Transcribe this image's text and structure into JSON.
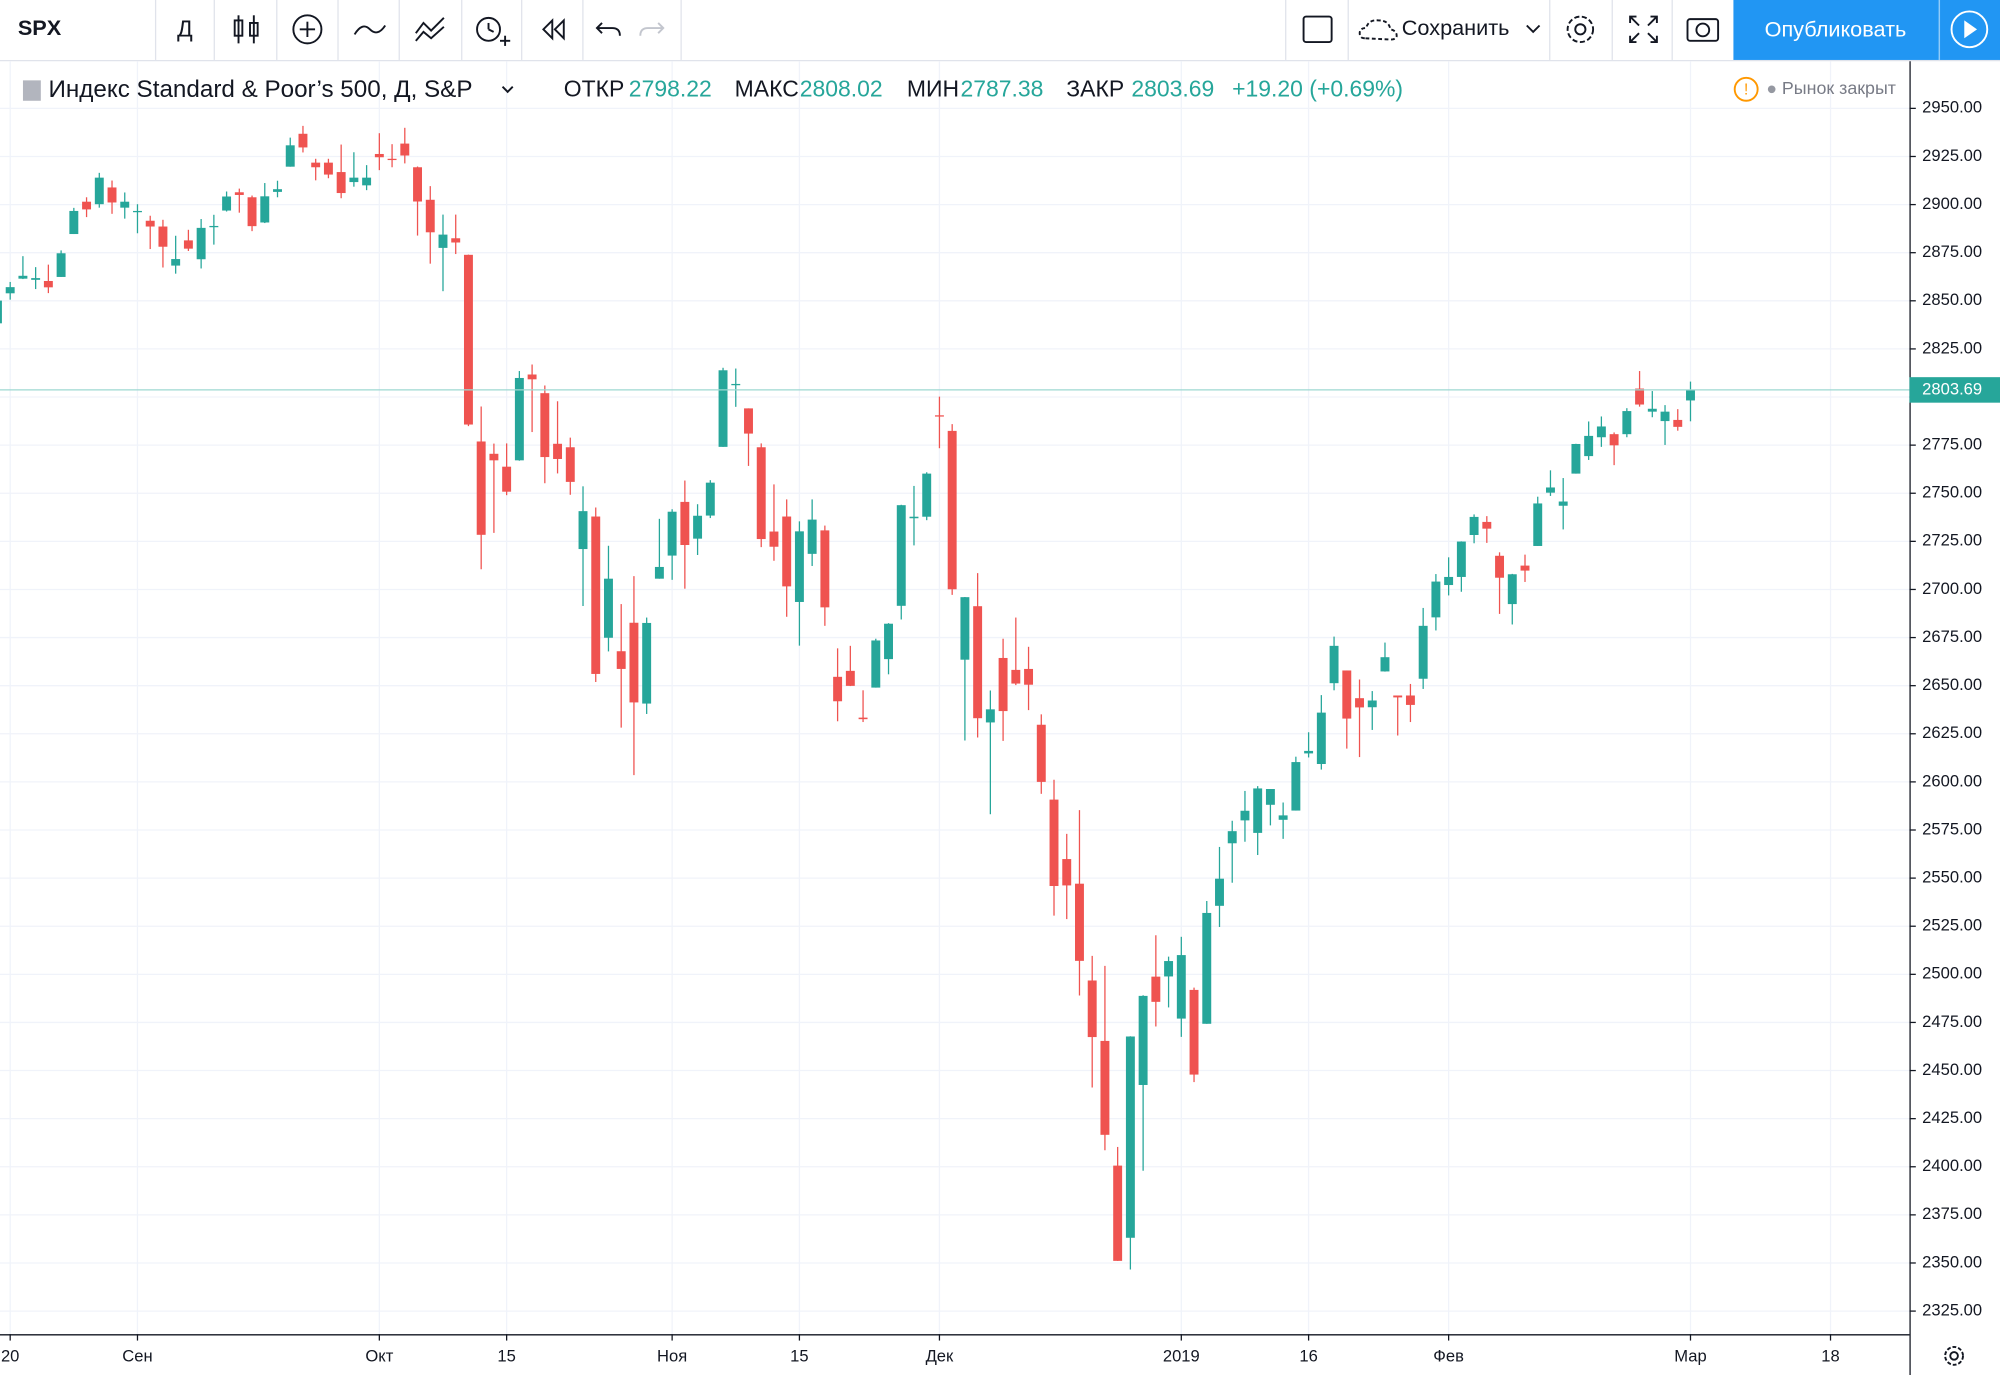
{
  "toolbar": {
    "symbol": "SPX",
    "interval": "Д",
    "save": "Сохранить",
    "publish": "Опубликовать"
  },
  "chart_data": {
    "type": "candlestick",
    "title": "Индекс Standard & Poor’s 500, Д, S&P",
    "legend": {
      "open": "ОТКР",
      "high": "МАКС",
      "low": "МИН",
      "close": "ЗАКР",
      "change": "+19.20 (+0.69%)"
    },
    "status": "Рынок закрыт",
    "open": [
      2838.3,
      2853.9,
      2861.5,
      2860.9,
      2860.3,
      2862.4,
      2884.7,
      2901.5,
      2900.2,
      2908.9,
      2898.4,
      2896.5,
      2891.6,
      2888.6,
      2868.3,
      2881.4,
      2871.6,
      2888.3,
      2896.9,
      2906.4,
      2903.8,
      2890.7,
      2906.6,
      2919.7,
      2936.8,
      2921.8,
      2921.8,
      2916.9,
      2911.7,
      2910.0,
      2926.3,
      2923.8,
      2931.7,
      2919.4,
      2902.5,
      2877.5,
      2882.5,
      2873.9,
      2776.9,
      2770.5,
      2763.8,
      2767.1,
      2811.7,
      2802.0,
      2775.7,
      2773.9,
      2721.0,
      2737.9,
      2674.9,
      2667.9,
      2682.7,
      2640.7,
      2705.6,
      2717.6,
      2745.5,
      2726.4,
      2738.4,
      2774.1,
      2806.4,
      2794.1,
      2773.9,
      2730.1,
      2737.9,
      2693.5,
      2718.5,
      2730.7,
      2654.6,
      2657.7,
      2633.4,
      2649.0,
      2663.8,
      2691.5,
      2737.0,
      2737.8,
      2790.5,
      2782.4,
      2663.5,
      2691.3,
      2630.9,
      2664.4,
      2658.2,
      2658.7,
      2629.7,
      2590.8,
      2559.9,
      2547.1,
      2496.8,
      2465.4,
      2400.6,
      2363.1,
      2442.5,
      2498.8,
      2498.9,
      2477.0,
      2491.9,
      2474.3,
      2535.6,
      2568.1,
      2580.0,
      2573.5,
      2588.1,
      2580.3,
      2585.1,
      2614.8,
      2609.3,
      2651.3,
      2657.9,
      2643.5,
      2638.8,
      2657.4,
      2644.9,
      2644.9,
      2653.6,
      2685.5,
      2702.3,
      2706.5,
      2728.3,
      2735.1,
      2717.5,
      2692.4,
      2712.4,
      2722.6,
      2750.3,
      2743.5,
      2760.2,
      2769.3,
      2779.1,
      2780.7,
      2780.7,
      2804.4,
      2792.4,
      2787.5,
      2788.1,
      2798.22
    ],
    "high": [
      2855.6,
      2859.8,
      2873.2,
      2867.5,
      2868.8,
      2876.2,
      2898.3,
      2903.8,
      2916.5,
      2912.5,
      2906.3,
      2900.2,
      2894.2,
      2892.1,
      2883.8,
      2886.9,
      2892.5,
      2894.7,
      2906.8,
      2908.3,
      2904.7,
      2911.2,
      2912.4,
      2934.8,
      2940.9,
      2923.8,
      2923.8,
      2931.2,
      2927.2,
      2920.5,
      2937.1,
      2931.4,
      2939.9,
      2919.8,
      2909.6,
      2894.8,
      2894.8,
      2874.0,
      2795.1,
      2775.8,
      2775.9,
      2813.5,
      2816.9,
      2806.0,
      2797.8,
      2778.9,
      2753.6,
      2742.6,
      2722.7,
      2692.4,
      2706.9,
      2685.4,
      2736.7,
      2741.7,
      2756.6,
      2744.3,
      2756.8,
      2815.2,
      2814.8,
      2794.1,
      2775.9,
      2754.6,
      2746.8,
      2735.4,
      2746.8,
      2733.2,
      2669.4,
      2670.7,
      2647.6,
      2674.4,
      2682.5,
      2744.0,
      2753.8,
      2760.9,
      2800.2,
      2785.9,
      2696.1,
      2708.5,
      2647.5,
      2674.4,
      2685.4,
      2670.2,
      2635.1,
      2601.1,
      2573.0,
      2585.3,
      2509.6,
      2504.4,
      2410.3,
      2467.8,
      2489.1,
      2520.3,
      2509.2,
      2519.5,
      2493.1,
      2538.1,
      2566.2,
      2579.8,
      2595.3,
      2597.8,
      2596.3,
      2589.3,
      2613.1,
      2625.8,
      2645.1,
      2675.5,
      2657.9,
      2653.2,
      2647.2,
      2672.4,
      2644.9,
      2650.9,
      2690.4,
      2708.0,
      2716.7,
      2725.0,
      2739.0,
      2738.1,
      2719.3,
      2708.1,
      2718.1,
      2748.2,
      2761.9,
      2757.9,
      2775.7,
      2787.3,
      2789.9,
      2781.6,
      2794.2,
      2813.5,
      2803.1,
      2795.8,
      2793.7,
      2808.02
    ],
    "low": [
      2833.7,
      2850.6,
      2861.3,
      2856.1,
      2854.0,
      2862.4,
      2884.7,
      2893.5,
      2898.4,
      2895.2,
      2892.7,
      2885.1,
      2876.9,
      2867.3,
      2864.1,
      2875.9,
      2866.8,
      2879.2,
      2896.4,
      2895.8,
      2886.2,
      2890.4,
      2903.8,
      2919.7,
      2927.1,
      2912.6,
      2913.7,
      2903.3,
      2909.3,
      2907.5,
      2917.9,
      2919.4,
      2921.4,
      2883.9,
      2869.3,
      2855.0,
      2874.3,
      2784.9,
      2710.5,
      2729.4,
      2749.0,
      2766.9,
      2781.8,
      2755.2,
      2760.3,
      2749.2,
      2691.4,
      2651.9,
      2667.8,
      2628.2,
      2603.5,
      2635.3,
      2705.6,
      2705.0,
      2700.4,
      2717.9,
      2737.1,
      2774.1,
      2794.9,
      2764.2,
      2722.0,
      2714.9,
      2685.8,
      2670.8,
      2712.2,
      2681.1,
      2631.5,
      2649.8,
      2631.1,
      2649.0,
      2655.9,
      2684.4,
      2722.9,
      2736.0,
      2773.4,
      2697.2,
      2621.5,
      2623.1,
      2583.2,
      2621.3,
      2650.3,
      2637.3,
      2593.8,
      2530.5,
      2528.7,
      2489.0,
      2441.2,
      2408.6,
      2351.1,
      2346.6,
      2397.9,
      2472.9,
      2482.8,
      2467.5,
      2444.0,
      2474.3,
      2524.6,
      2547.6,
      2568.9,
      2562.0,
      2577.4,
      2570.4,
      2585.1,
      2612.7,
      2606.4,
      2647.6,
      2617.3,
      2612.9,
      2627.0,
      2657.3,
      2624.1,
      2631.1,
      2648.3,
      2678.7,
      2696.9,
      2698.8,
      2724.0,
      2724.2,
      2687.3,
      2681.8,
      2703.9,
      2722.6,
      2748.6,
      2731.2,
      2760.2,
      2767.3,
      2774.1,
      2764.6,
      2779.1,
      2795.0,
      2789.5,
      2775.1,
      2782.5,
      2787.38
    ],
    "close": [
      2850.1,
      2857.1,
      2863.0,
      2861.8,
      2857.0,
      2874.7,
      2896.7,
      2897.5,
      2914.0,
      2901.1,
      2901.5,
      2896.7,
      2888.6,
      2878.1,
      2871.7,
      2877.1,
      2887.9,
      2888.9,
      2904.2,
      2905.0,
      2888.8,
      2904.3,
      2908.0,
      2930.8,
      2929.7,
      2919.4,
      2915.6,
      2906.0,
      2914.0,
      2914.0,
      2924.6,
      2923.4,
      2925.5,
      2901.6,
      2885.6,
      2884.4,
      2880.3,
      2785.7,
      2728.4,
      2767.1,
      2750.8,
      2809.9,
      2809.2,
      2768.8,
      2767.8,
      2755.9,
      2740.7,
      2656.1,
      2705.6,
      2658.7,
      2641.3,
      2682.6,
      2711.7,
      2740.4,
      2723.1,
      2738.3,
      2755.5,
      2813.9,
      2806.8,
      2781.0,
      2726.2,
      2722.2,
      2701.6,
      2730.2,
      2736.3,
      2690.7,
      2641.9,
      2649.9,
      2632.6,
      2673.5,
      2682.2,
      2743.8,
      2737.8,
      2760.2,
      2790.4,
      2700.1,
      2696.0,
      2633.1,
      2637.7,
      2636.8,
      2651.1,
      2650.5,
      2600.0,
      2545.9,
      2546.2,
      2507.0,
      2467.4,
      2416.6,
      2351.1,
      2467.7,
      2488.8,
      2485.7,
      2506.9,
      2510.0,
      2447.9,
      2531.9,
      2549.7,
      2574.4,
      2585.0,
      2596.6,
      2596.3,
      2582.6,
      2610.3,
      2616.1,
      2636.0,
      2670.7,
      2632.9,
      2638.7,
      2642.3,
      2664.8,
      2643.9,
      2640.0,
      2681.1,
      2704.1,
      2706.5,
      2724.9,
      2737.7,
      2731.6,
      2706.1,
      2707.9,
      2709.8,
      2744.7,
      2753.0,
      2745.7,
      2775.6,
      2779.8,
      2784.7,
      2774.9,
      2792.7,
      2796.1,
      2793.9,
      2792.4,
      2784.5,
      2803.69
    ],
    "up_color": "#26a69a",
    "down_color": "#ef5350",
    "last_line_color": "#9ed8d2",
    "xlim": [
      0.2,
      150.2
    ],
    "xticks": [
      {
        "value": 1,
        "label": "20"
      },
      {
        "value": 11,
        "label": "Сен"
      },
      {
        "value": 30,
        "label": "Окт"
      },
      {
        "value": 40,
        "label": "15"
      },
      {
        "value": 53,
        "label": "Ноя"
      },
      {
        "value": 63,
        "label": "15"
      },
      {
        "value": 74,
        "label": "Дек"
      },
      {
        "value": 93,
        "label": "2019"
      },
      {
        "value": 103,
        "label": "16"
      },
      {
        "value": 114,
        "label": "Фев"
      },
      {
        "value": 133,
        "label": "Мар"
      },
      {
        "value": 144,
        "label": "18"
      }
    ],
    "ylim": [
      2313,
      2974.5
    ],
    "yticks": [
      {
        "value": 2325,
        "label": "2325.00"
      },
      {
        "value": 2350,
        "label": "2350.00"
      },
      {
        "value": 2375,
        "label": "2375.00"
      },
      {
        "value": 2400,
        "label": "2400.00"
      },
      {
        "value": 2425,
        "label": "2425.00"
      },
      {
        "value": 2450,
        "label": "2450.00"
      },
      {
        "value": 2475,
        "label": "2475.00"
      },
      {
        "value": 2500,
        "label": "2500.00"
      },
      {
        "value": 2525,
        "label": "2525.00"
      },
      {
        "value": 2550,
        "label": "2550.00"
      },
      {
        "value": 2575,
        "label": "2575.00"
      },
      {
        "value": 2600,
        "label": "2600.00"
      },
      {
        "value": 2625,
        "label": "2625.00"
      },
      {
        "value": 2650,
        "label": "2650.00"
      },
      {
        "value": 2675,
        "label": "2675.00"
      },
      {
        "value": 2700,
        "label": "2700.00"
      },
      {
        "value": 2725,
        "label": "2725.00"
      },
      {
        "value": 2750,
        "label": "2750.00"
      },
      {
        "value": 2775,
        "label": "2775.00"
      },
      {
        "value": 2800,
        "label": "2800.00"
      },
      {
        "value": 2825,
        "label": "2825.00"
      },
      {
        "value": 2850,
        "label": "2850.00"
      },
      {
        "value": 2875,
        "label": "2875.00"
      },
      {
        "value": 2900,
        "label": "2900.00"
      },
      {
        "value": 2925,
        "label": "2925.00"
      },
      {
        "value": 2950,
        "label": "2950.00"
      }
    ],
    "grid": true
  }
}
